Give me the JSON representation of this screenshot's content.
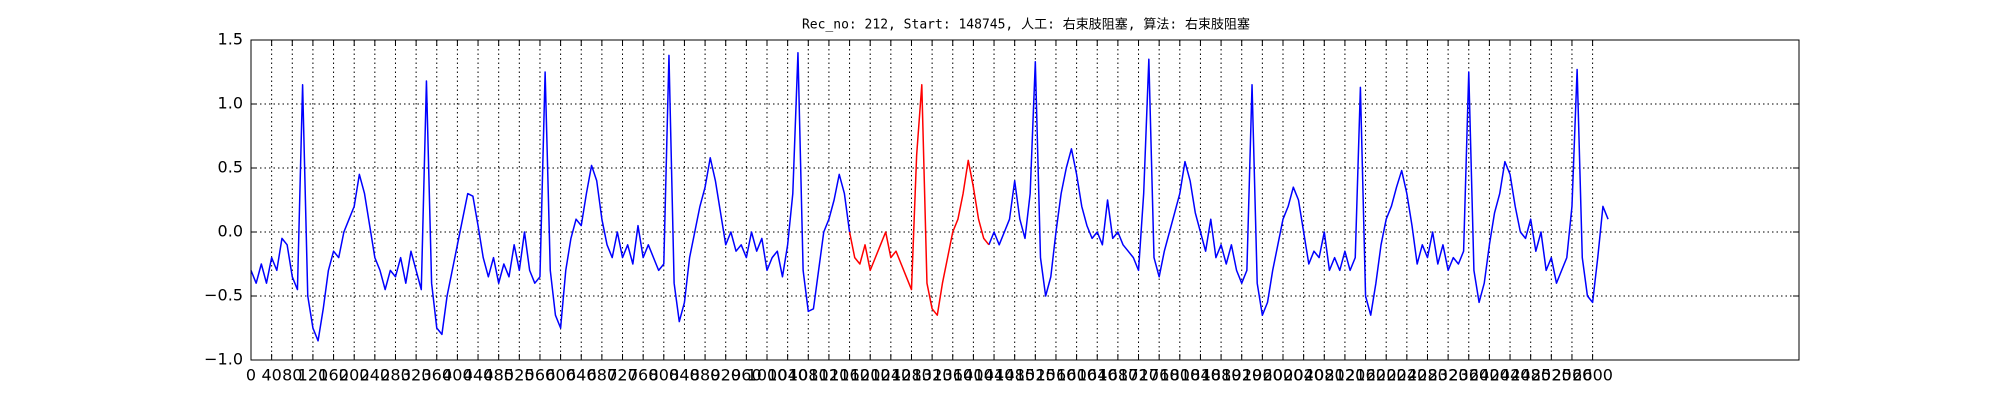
{
  "chart_data": {
    "type": "line",
    "title": "Rec_no: 212, Start: 148745, 人工: 右束肢阻塞, 算法: 右束肢阻塞",
    "x": [
      0,
      10,
      20,
      30,
      40,
      50,
      60,
      70,
      80,
      90,
      100,
      110,
      120,
      130,
      140,
      150,
      160,
      170,
      180,
      190,
      200,
      210,
      220,
      230,
      240,
      250,
      260,
      270,
      280,
      290,
      300,
      310,
      320,
      330,
      340,
      350,
      360,
      370,
      380,
      390,
      400,
      410,
      420,
      430,
      440,
      450,
      460,
      470,
      480,
      490,
      500,
      510,
      520,
      530,
      540,
      550,
      560,
      570,
      580,
      590,
      600,
      610,
      620,
      630,
      640,
      650,
      660,
      670,
      680,
      690,
      700,
      710,
      720,
      730,
      740,
      750,
      760,
      770,
      780,
      790,
      800,
      810,
      820,
      830,
      840,
      850,
      860,
      870,
      880,
      890,
      900,
      910,
      920,
      930,
      940,
      950,
      960,
      970,
      980,
      990,
      1000,
      1010,
      1020,
      1030,
      1040,
      1050,
      1060,
      1070,
      1080,
      1090,
      1100,
      1110,
      1120,
      1130,
      1140,
      1150,
      1160,
      1170,
      1180,
      1190,
      1200,
      1210,
      1220,
      1230,
      1240,
      1250,
      1260,
      1270,
      1280,
      1290,
      1300,
      1310,
      1320,
      1330,
      1340,
      1350,
      1360,
      1370,
      1380,
      1390,
      1400,
      1410,
      1420,
      1430,
      1440,
      1450,
      1460,
      1470,
      1480,
      1490,
      1500,
      1510,
      1520,
      1530,
      1540,
      1550,
      1560,
      1570,
      1580,
      1590,
      1600,
      1610,
      1620,
      1630,
      1640,
      1650,
      1660,
      1670,
      1680,
      1690,
      1700,
      1710,
      1720,
      1730,
      1740,
      1750,
      1760,
      1770,
      1780,
      1790,
      1800,
      1810,
      1820,
      1830,
      1840,
      1850,
      1860,
      1870,
      1880,
      1890,
      1900,
      1910,
      1920,
      1930,
      1940,
      1950,
      1960,
      1970,
      1980,
      1990,
      2000,
      2010,
      2020,
      2030,
      2040,
      2050,
      2060,
      2070,
      2080,
      2090,
      2100,
      2110,
      2120,
      2130,
      2140,
      2150,
      2160,
      2170,
      2180,
      2190,
      2200,
      2210,
      2220,
      2230,
      2240,
      2250,
      2260,
      2270,
      2280,
      2290,
      2300,
      2310,
      2320,
      2330,
      2340,
      2350,
      2360,
      2370,
      2380,
      2390,
      2400,
      2410,
      2420,
      2430,
      2440,
      2450,
      2460,
      2470,
      2480,
      2490,
      2500,
      2510,
      2520,
      2530,
      2540,
      2550,
      2560,
      2570,
      2580,
      2590,
      2600,
      2610,
      2620,
      2630
    ],
    "series": [
      {
        "color": "#0000ff",
        "values": [
          -0.3,
          -0.4,
          -0.25,
          -0.4,
          -0.2,
          -0.3,
          -0.05,
          -0.1,
          -0.35,
          -0.45,
          1.15,
          -0.5,
          -0.75,
          -0.85,
          -0.6,
          -0.3,
          -0.15,
          -0.2,
          0.0,
          0.1,
          0.2,
          0.45,
          0.3,
          0.05,
          -0.2,
          -0.3,
          -0.45,
          -0.3,
          -0.35,
          -0.2,
          -0.4,
          -0.15,
          -0.3,
          -0.45,
          1.18,
          -0.4,
          -0.75,
          -0.8,
          -0.5,
          -0.3,
          -0.1,
          0.1,
          0.3,
          0.28,
          0.05,
          -0.2,
          -0.35,
          -0.2,
          -0.4,
          -0.25,
          -0.35,
          -0.1,
          -0.3,
          0.0,
          -0.3,
          -0.4,
          -0.35,
          1.25,
          -0.3,
          -0.65,
          -0.75,
          -0.3,
          -0.05,
          0.1,
          0.05,
          0.3,
          0.52,
          0.4,
          0.1,
          -0.1,
          -0.2,
          0.0,
          -0.2,
          -0.1,
          -0.25,
          0.05,
          -0.2,
          -0.1,
          -0.2,
          -0.3,
          -0.25,
          1.38,
          -0.4,
          -0.7,
          -0.55,
          -0.2,
          0.0,
          0.2,
          0.35,
          0.58,
          0.4,
          0.15,
          -0.1,
          0.0,
          -0.15,
          -0.1,
          -0.2,
          0.0,
          -0.15,
          -0.05,
          -0.3,
          -0.2,
          -0.15,
          -0.35,
          -0.1,
          0.3,
          1.4,
          -0.3,
          -0.62,
          -0.6,
          -0.3,
          0.0,
          0.1,
          0.25,
          0.45,
          0.3,
          0.0,
          null,
          null,
          null,
          null,
          null,
          null,
          null,
          null,
          null,
          null,
          null,
          null,
          null,
          null,
          null,
          null,
          null,
          null,
          null,
          null,
          null,
          null,
          null,
          null,
          null,
          null,
          -0.1,
          0.0,
          -0.1,
          0.0,
          0.1,
          0.4,
          0.1,
          -0.05,
          0.3,
          1.33,
          -0.2,
          -0.5,
          -0.35,
          0.0,
          0.3,
          0.5,
          0.65,
          0.45,
          0.2,
          0.05,
          -0.05,
          0.0,
          -0.1,
          0.25,
          -0.05,
          0.0,
          -0.1,
          -0.15,
          -0.2,
          -0.3,
          0.3,
          1.35,
          -0.2,
          -0.35,
          -0.15,
          0.0,
          0.15,
          0.3,
          0.55,
          0.4,
          0.15,
          0.0,
          -0.15,
          0.1,
          -0.2,
          -0.1,
          -0.25,
          -0.1,
          -0.3,
          -0.4,
          -0.3,
          1.15,
          -0.4,
          -0.65,
          -0.55,
          -0.3,
          -0.1,
          0.1,
          0.2,
          0.35,
          0.25,
          0.0,
          -0.25,
          -0.15,
          -0.2,
          0.0,
          -0.3,
          -0.2,
          -0.3,
          -0.15,
          -0.3,
          -0.2,
          1.13,
          -0.5,
          -0.65,
          -0.4,
          -0.1,
          0.1,
          0.2,
          0.35,
          0.48,
          0.3,
          0.05,
          -0.25,
          -0.1,
          -0.2,
          0.0,
          -0.25,
          -0.1,
          -0.3,
          -0.2,
          -0.25,
          -0.15,
          1.25,
          -0.3,
          -0.55,
          -0.4,
          -0.1,
          0.15,
          0.3,
          0.55,
          0.45,
          0.2,
          0.0,
          -0.05,
          0.1,
          -0.15,
          0.0,
          -0.3,
          -0.2,
          -0.4,
          -0.3,
          -0.2,
          0.2,
          1.27,
          -0.2,
          -0.5,
          -0.55,
          -0.2,
          0.2,
          0.1
        ]
      },
      {
        "color": "#ff0000",
        "x": [
          1160,
          1170,
          1180,
          1190,
          1200,
          1210,
          1220,
          1230,
          1240,
          1250,
          1260,
          1270,
          1280,
          1290,
          1300,
          1310,
          1320,
          1330,
          1340,
          1350,
          1360,
          1370,
          1380,
          1390,
          1400,
          1410,
          1420,
          1430
        ],
        "values": [
          0.0,
          -0.2,
          -0.25,
          -0.1,
          -0.3,
          -0.2,
          -0.1,
          0.0,
          -0.2,
          -0.15,
          -0.25,
          -0.35,
          -0.45,
          0.6,
          1.15,
          -0.4,
          -0.6,
          -0.65,
          -0.4,
          -0.2,
          0.0,
          0.1,
          0.3,
          0.56,
          0.35,
          0.1,
          -0.05,
          -0.1
        ]
      }
    ],
    "xlim": [
      0,
      3000
    ],
    "xticks": [
      0,
      40,
      80,
      120,
      160,
      200,
      240,
      280,
      320,
      360,
      400,
      440,
      480,
      520,
      560,
      600,
      640,
      680,
      720,
      760,
      800,
      840,
      880,
      920,
      960,
      1000,
      1040,
      1080,
      1120,
      1160,
      1200,
      1240,
      1280,
      1320,
      1360,
      1400,
      1440,
      1480,
      1520,
      1560,
      1600,
      1640,
      1680,
      1720,
      1760,
      1800,
      1840,
      1880,
      1920,
      1960,
      2000,
      2040,
      2080,
      2120,
      2160,
      2200,
      2240,
      2280,
      2320,
      2360,
      2400,
      2440,
      2480,
      2520,
      2560,
      2600
    ],
    "ylim": [
      -1.0,
      1.5
    ],
    "yticks": [
      {
        "value": -1.0,
        "label": "−1.0"
      },
      {
        "value": -0.5,
        "label": "−0.5"
      },
      {
        "value": 0.0,
        "label": "0.0"
      },
      0.5,
      {
        "value": 1.0,
        "label": "1.0"
      },
      1.5
    ],
    "grid": true
  }
}
